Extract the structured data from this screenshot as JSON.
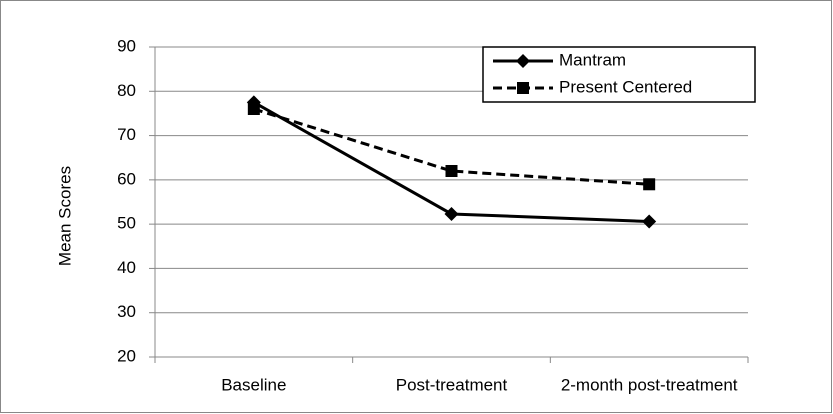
{
  "chart_data": {
    "type": "line",
    "y_label": "Mean Scores",
    "categories": [
      "Baseline",
      "Post-treatment",
      "2-month post-treatment"
    ],
    "series": [
      {
        "name": "Mantram",
        "color": "#000000",
        "marker": "diamond",
        "dashed": false,
        "values": [
          77.5,
          52.3,
          50.6
        ]
      },
      {
        "name": "Present Centered",
        "color": "#000000",
        "marker": "square",
        "dashed": true,
        "values": [
          76,
          62,
          59
        ]
      }
    ],
    "ylim": [
      20,
      90
    ],
    "yticks": [
      20,
      30,
      40,
      50,
      60,
      70,
      80,
      90
    ],
    "grid": true,
    "legend": "top-right"
  }
}
